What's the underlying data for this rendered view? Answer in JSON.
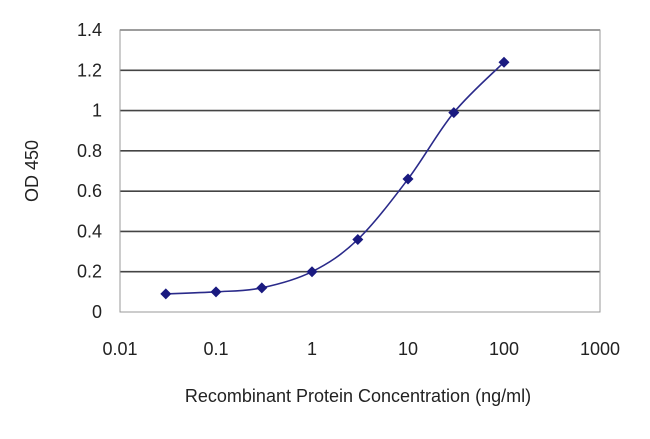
{
  "chart_data": {
    "type": "scatter",
    "title": "",
    "xlabel": "Recombinant Protein Concentration (ng/ml)",
    "ylabel": "OD 450",
    "xscale": "log",
    "xlim": [
      0.01,
      1000
    ],
    "ylim": [
      0,
      1.4
    ],
    "x_ticks": [
      "0.01",
      "0.1",
      "1",
      "10",
      "100",
      "1000"
    ],
    "y_ticks": [
      "0",
      "0.2",
      "0.4",
      "0.6",
      "0.8",
      "1",
      "1.2",
      "1.4"
    ],
    "grid": "horizontal",
    "legend": "none",
    "series": [
      {
        "x": [
          0.03,
          0.1,
          0.3,
          1,
          3,
          10,
          30,
          100
        ],
        "y": [
          0.09,
          0.1,
          0.12,
          0.2,
          0.36,
          0.66,
          0.99,
          1.24
        ],
        "marker": "diamond",
        "fitted_curve": true
      }
    ],
    "colors": {
      "series": "#2a2a8a",
      "marker": "#1a1a80",
      "grid": "#444444",
      "frame": "#999999"
    }
  }
}
